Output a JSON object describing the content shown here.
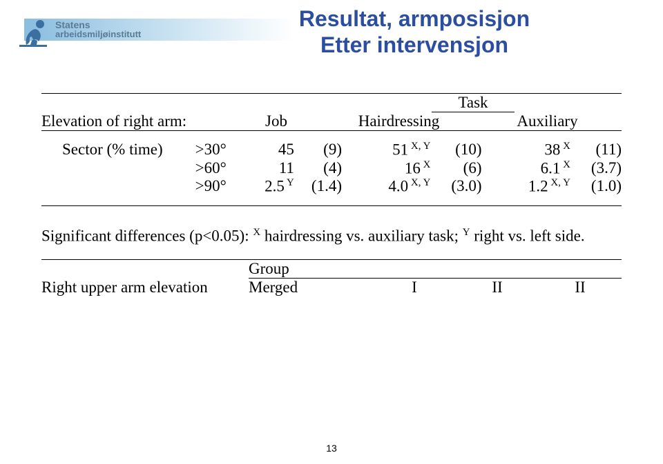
{
  "header": {
    "org_line1": "Statens",
    "org_line2": "arbeidsmiljøinstitutt",
    "title_line1": "Resultat, armposisjon",
    "title_line2": "Etter intervensjon",
    "title_color": "#2b4ea0",
    "banner_gradient_from": "#8abde0",
    "banner_gradient_to": "#ffffff"
  },
  "table1": {
    "row_label": "Elevation of right arm:",
    "job_label": "Job",
    "task_label": "Task",
    "hair_label": "Hairdressing",
    "aux_label": "Auxiliary",
    "sector_label": "Sector (% time)",
    "rows": [
      {
        "deg": ">30°",
        "v1": "45",
        "v1p": "(9)",
        "v2": "51",
        "v2sup": "X, Y",
        "v2p": "(10)",
        "v3": "38",
        "v3sup": "X",
        "v3p": "(11)"
      },
      {
        "deg": ">60°",
        "v1": "11",
        "v1p": "(4)",
        "v2": "16",
        "v2sup": "X",
        "v2p": "(6)",
        "v3": "6.1",
        "v3sup": "X",
        "v3p": "(3.7)"
      },
      {
        "deg": ">90°",
        "v1": "2.5",
        "v1sup": "Y",
        "v1p": "(1.4)",
        "v2": "4.0",
        "v2sup": "X, Y",
        "v2p": "(3.0)",
        "v3": "1.2",
        "v3sup": "X, Y",
        "v3p": "(1.0)"
      }
    ]
  },
  "significance": {
    "prefix": "Significant differences (p<0.05): ",
    "supX": "X",
    "part2": " hairdressing vs. auxiliary task; ",
    "supY": "Y",
    "part3": " right vs. left side."
  },
  "table2": {
    "group_label": "Group",
    "row_label": "Right upper arm elevation",
    "merged": "Merged",
    "col1": "I",
    "col2": "II",
    "col3": "II"
  },
  "page_number": "13",
  "colors": {
    "text": "#000000",
    "background": "#ffffff",
    "logo_person": "#3b6fa0",
    "org_text": "#5b7a94"
  }
}
